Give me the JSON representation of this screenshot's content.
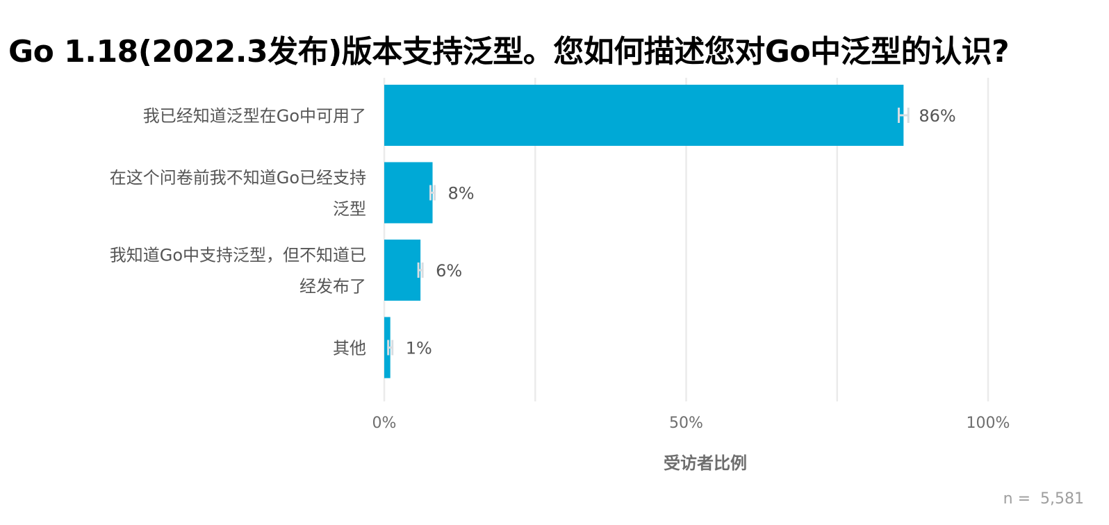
{
  "chart_data": {
    "type": "bar",
    "orientation": "horizontal",
    "title": "Go 1.18(2022.3发布)版本支持泛型。您如何描述您对Go中泛型的认识?",
    "xlabel": "受访者比例",
    "ylabel": "",
    "xlim": [
      0,
      100
    ],
    "grid": true,
    "categories": [
      [
        "我已经知道泛型在Go中可用了"
      ],
      [
        "在这个问卷前我不知道Go已经支持",
        "泛型"
      ],
      [
        "我知道Go中支持泛型，但不知道已",
        "经发布了"
      ],
      [
        "其他"
      ]
    ],
    "values": [
      86,
      8,
      6,
      1
    ],
    "value_labels": [
      "86%",
      "8%",
      "6%",
      "1%"
    ],
    "error_bars": true,
    "x_ticks": [
      0,
      50,
      100
    ],
    "x_tick_labels": [
      "0%",
      "50%",
      "100%"
    ],
    "bar_color": "#00a9d6",
    "error_bar_color": "#d7dde2",
    "note": "n =  5,581"
  }
}
